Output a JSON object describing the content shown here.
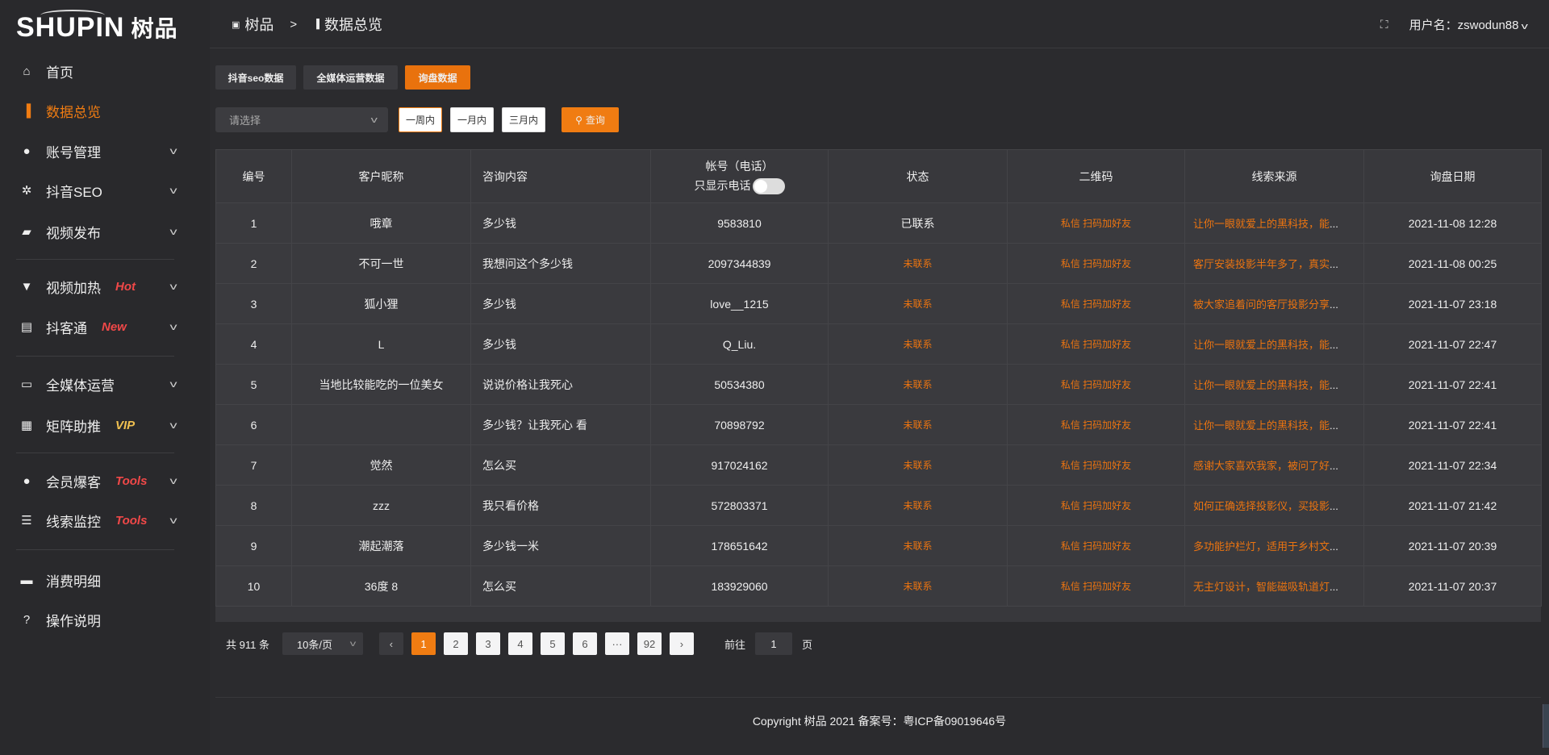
{
  "logo": {
    "text": "SHUPIN",
    "cn": "树品"
  },
  "sidebar": {
    "items": [
      {
        "label": "首页",
        "icon": "home-icon",
        "glyph": "⌂"
      },
      {
        "label": "数据总览",
        "icon": "bar-chart-icon",
        "glyph": "▐",
        "active": true
      },
      {
        "label": "账号管理",
        "icon": "user-icon",
        "glyph": "●",
        "chev": true
      },
      {
        "label": "抖音SEO",
        "icon": "gear-icon",
        "glyph": "✲",
        "chev": true
      },
      {
        "label": "视频发布",
        "icon": "video-icon",
        "glyph": "▰",
        "chev": true
      },
      {
        "label": "视频加热",
        "icon": "brush-icon",
        "glyph": "▼",
        "chev": true,
        "badge": "Hot",
        "badge_color": "#f04848"
      },
      {
        "label": "抖客通",
        "icon": "chat-icon",
        "glyph": "▤",
        "chev": true,
        "badge": "New",
        "badge_color": "#f04848"
      },
      {
        "label": "全媒体运营",
        "icon": "monitor-icon",
        "glyph": "▭",
        "chev": true
      },
      {
        "label": "矩阵助推",
        "icon": "grid-icon",
        "glyph": "▦",
        "chev": true,
        "badge": "VIP",
        "badge_color": "#f0c050"
      },
      {
        "label": "会员爆客",
        "icon": "member-icon",
        "glyph": "●",
        "chev": true,
        "badge": "Tools",
        "badge_color": "#f04848"
      },
      {
        "label": "线索监控",
        "icon": "sliders-icon",
        "glyph": "☰",
        "chev": true,
        "badge": "Tools",
        "badge_color": "#f04848"
      },
      {
        "label": "消费明细",
        "icon": "wallet-icon",
        "glyph": "▬"
      },
      {
        "label": "操作说明",
        "icon": "help-icon",
        "glyph": "?"
      }
    ]
  },
  "header": {
    "crumb_root": "树品",
    "crumb_sep": ">",
    "crumb_current": "数据总览",
    "user_label": "用户名：zswodun88"
  },
  "tabs": [
    "抖音seo数据",
    "全媒体运营数据",
    "询盘数据"
  ],
  "filters": {
    "select_placeholder": "请选择",
    "ranges": [
      "一周内",
      "一月内",
      "三月内"
    ],
    "query": "查询"
  },
  "table": {
    "headers": [
      "编号",
      "客户昵称",
      "咨询内容",
      "帐号（电话）",
      "状态",
      "二维码",
      "线索来源",
      "询盘日期"
    ],
    "phone_toggle_label": "只显示电话",
    "qr_text": "私信 扫码加好友",
    "rows": [
      [
        "1",
        "哦章",
        "多少钱",
        "9583810",
        "已联系",
        "让你一眼就爱上的黑科技，能",
        "2021-11-08 12:28"
      ],
      [
        "2",
        "不可一世",
        "我想问这个多少钱",
        "2097344839",
        "未联系",
        "客厅安装投影半年多了，真实",
        "2021-11-08 00:25"
      ],
      [
        "3",
        "狐小狸",
        "多少钱",
        "love__1215",
        "未联系",
        "被大家追着问的客厅投影分享",
        "2021-11-07 23:18"
      ],
      [
        "4",
        "L",
        "多少钱",
        "Q_Liu.",
        "未联系",
        "让你一眼就爱上的黑科技，能",
        "2021-11-07 22:47"
      ],
      [
        "5",
        "当地比较能吃的一位美女",
        "说说价格让我死心",
        "50534380",
        "未联系",
        "让你一眼就爱上的黑科技，能",
        "2021-11-07 22:41"
      ],
      [
        "6",
        "",
        "多少钱？让我死心 看",
        "70898792",
        "未联系",
        "让你一眼就爱上的黑科技，能",
        "2021-11-07 22:41"
      ],
      [
        "7",
        "觉然",
        "怎么买",
        "917024162",
        "未联系",
        "感谢大家喜欢我家，被问了好",
        "2021-11-07 22:34"
      ],
      [
        "8",
        "zzz",
        "我只看价格",
        "572803371",
        "未联系",
        "如何正确选择投影仪，买投影",
        "2021-11-07 21:42"
      ],
      [
        "9",
        "潮起潮落",
        "多少钱一米",
        "178651642",
        "未联系",
        "多功能护栏灯，适用于乡村文",
        "2021-11-07 20:39"
      ],
      [
        "10",
        "36度 8",
        "怎么买",
        "183929060",
        "未联系",
        "无主灯设计，智能磁吸轨道灯",
        "2021-11-07 20:37"
      ]
    ]
  },
  "pagination": {
    "total": "共 911 条",
    "page_size": "10条/页",
    "pages": [
      "1",
      "2",
      "3",
      "4",
      "5",
      "6",
      "···",
      "92"
    ],
    "current": "1",
    "goto_label": "前往",
    "goto_value": "1",
    "goto_suffix": "页"
  },
  "footer": {
    "copyright": "Copyright 树品 2021 备案号：粤ICP备09019646号"
  },
  "colors": {
    "accent": "#f07c12",
    "bg": "#2b2b2e",
    "table": "#3a3a3e"
  }
}
